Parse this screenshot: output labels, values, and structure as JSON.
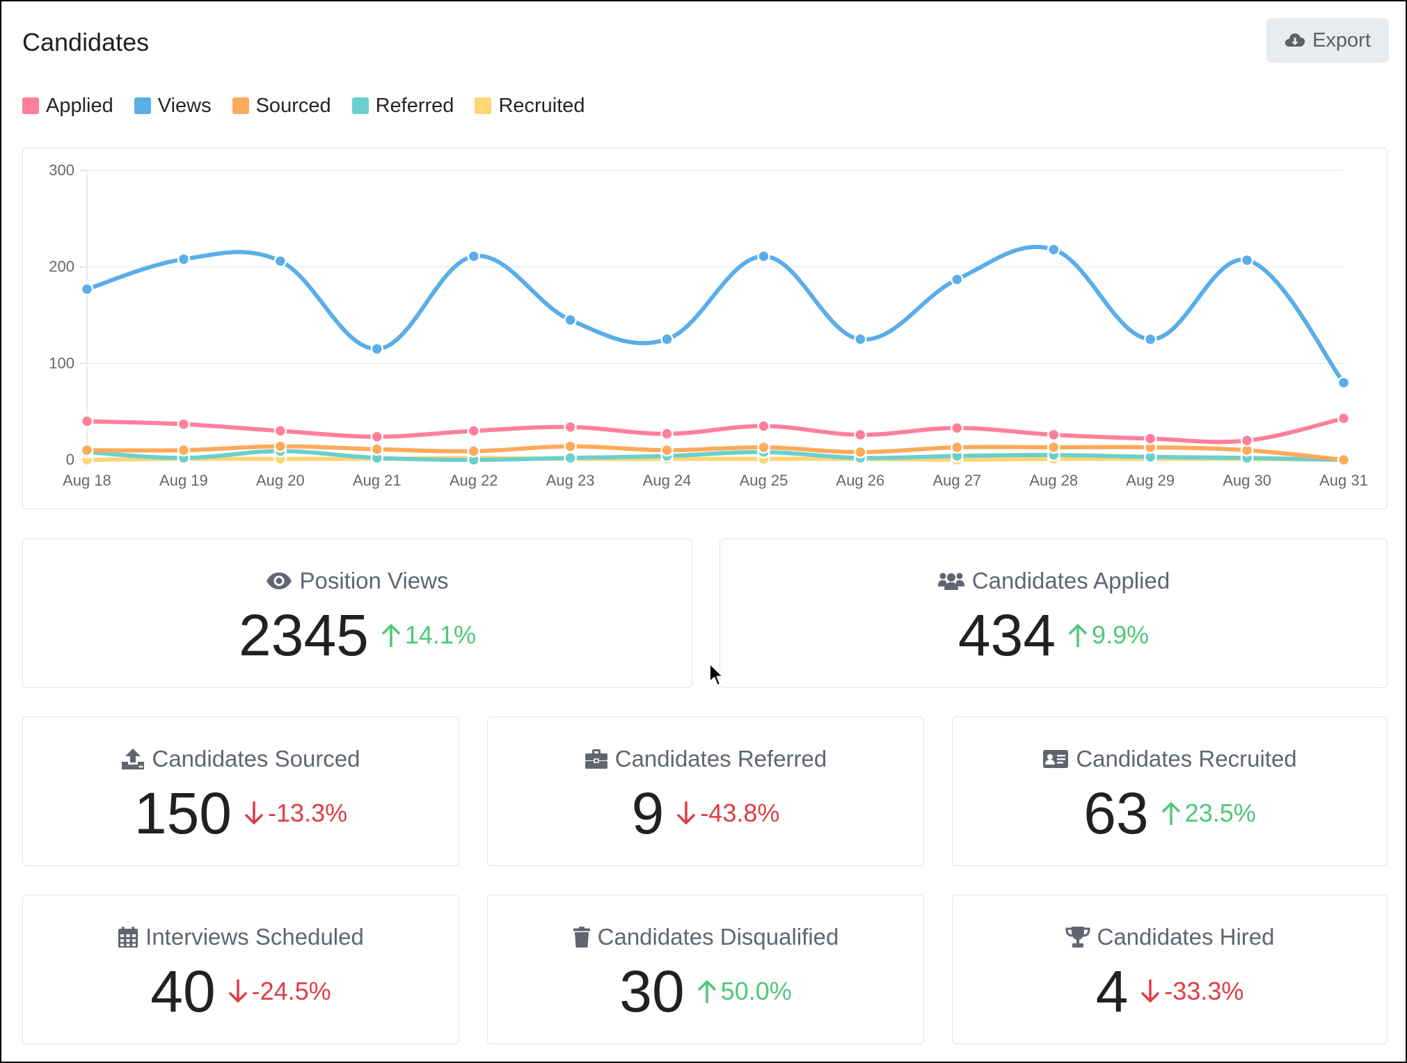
{
  "header": {
    "title": "Candidates",
    "export_label": "Export"
  },
  "legend": [
    {
      "label": "Applied",
      "color": "#ff7f9b"
    },
    {
      "label": "Views",
      "color": "#5aade9"
    },
    {
      "label": "Sourced",
      "color": "#fdaa5a"
    },
    {
      "label": "Referred",
      "color": "#6bcfcb"
    },
    {
      "label": "Recruited",
      "color": "#ffd676"
    }
  ],
  "chart_data": {
    "type": "line",
    "x": [
      "Aug 18",
      "Aug 19",
      "Aug 20",
      "Aug 21",
      "Aug 22",
      "Aug 23",
      "Aug 24",
      "Aug 25",
      "Aug 26",
      "Aug 27",
      "Aug 28",
      "Aug 29",
      "Aug 30",
      "Aug 31"
    ],
    "ylim": [
      0,
      300
    ],
    "yticks": [
      0,
      100,
      200,
      300
    ],
    "grid": true,
    "series": [
      {
        "name": "Views",
        "color": "#5aade9",
        "values": [
          177,
          208,
          206,
          115,
          211,
          145,
          125,
          211,
          125,
          187,
          218,
          125,
          207,
          80
        ]
      },
      {
        "name": "Applied",
        "color": "#ff7f9b",
        "values": [
          40,
          37,
          30,
          24,
          30,
          34,
          27,
          35,
          26,
          33,
          26,
          22,
          20,
          43
        ]
      },
      {
        "name": "Sourced",
        "color": "#fdaa5a",
        "values": [
          10,
          10,
          14,
          11,
          9,
          14,
          10,
          13,
          8,
          13,
          13,
          13,
          10,
          0
        ]
      },
      {
        "name": "Referred",
        "color": "#6bcfcb",
        "values": [
          8,
          2,
          9,
          2,
          0,
          2,
          4,
          8,
          2,
          4,
          5,
          3,
          2,
          0
        ]
      },
      {
        "name": "Recruited",
        "color": "#ffd676",
        "values": [
          0,
          1,
          1,
          1,
          2,
          1,
          1,
          1,
          1,
          0,
          1,
          1,
          1,
          0
        ]
      }
    ]
  },
  "stats": {
    "views": {
      "label": "Position Views",
      "value": "2345",
      "delta": "14.1%",
      "dir": "up",
      "icon": "eye-icon"
    },
    "applied": {
      "label": "Candidates Applied",
      "value": "434",
      "delta": "9.9%",
      "dir": "up",
      "icon": "users-icon"
    },
    "sourced": {
      "label": "Candidates Sourced",
      "value": "150",
      "delta": "-13.3%",
      "dir": "down",
      "icon": "upload-icon"
    },
    "referred": {
      "label": "Candidates Referred",
      "value": "9",
      "delta": "-43.8%",
      "dir": "down",
      "icon": "briefcase-icon"
    },
    "recruited": {
      "label": "Candidates Recruited",
      "value": "63",
      "delta": "23.5%",
      "dir": "up",
      "icon": "id-card-icon"
    },
    "interviews": {
      "label": "Interviews Scheduled",
      "value": "40",
      "delta": "-24.5%",
      "dir": "down",
      "icon": "calendar-icon"
    },
    "disqualified": {
      "label": "Candidates Disqualified",
      "value": "30",
      "delta": "50.0%",
      "dir": "up",
      "icon": "trash-icon"
    },
    "hired": {
      "label": "Candidates Hired",
      "value": "4",
      "delta": "-33.3%",
      "dir": "down",
      "icon": "trophy-icon"
    }
  },
  "colors": {
    "up": "#4fc777",
    "down": "#e03c44",
    "muted": "#5f6670"
  }
}
